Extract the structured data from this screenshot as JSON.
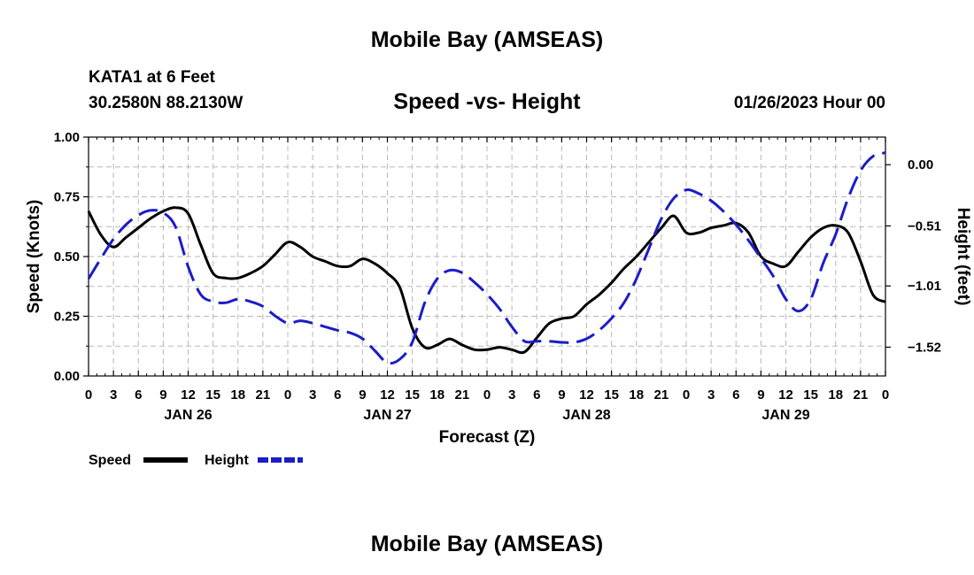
{
  "header": {
    "title": "Mobile Bay (AMSEAS)",
    "station": "KATA1 at 6 Feet",
    "coords": "30.2580N  88.2130W",
    "datetime": "01/26/2023 Hour 00",
    "footer_title": "Mobile Bay (AMSEAS)"
  },
  "chart_data": {
    "type": "line",
    "title": "Speed -vs- Height",
    "xlabel": "Forecast (Z)",
    "ylabel_left": "Speed (Knots)",
    "ylabel_right": "Height (feet)",
    "x_range_hours": [
      0,
      96
    ],
    "y_left_range": [
      0,
      1
    ],
    "y_right_range": [
      -1.76,
      0.23
    ],
    "x_tick_labels": [
      "0",
      "3",
      "6",
      "9",
      "12",
      "15",
      "18",
      "21",
      "0",
      "3",
      "6",
      "9",
      "12",
      "15",
      "18",
      "21",
      "0",
      "3",
      "6",
      "9",
      "12",
      "15",
      "18",
      "21",
      "0",
      "3",
      "6",
      "9",
      "12",
      "15",
      "18",
      "21",
      "0"
    ],
    "day_labels": [
      {
        "hour": 12,
        "label": "JAN 26"
      },
      {
        "hour": 36,
        "label": "JAN 27"
      },
      {
        "hour": 60,
        "label": "JAN 28"
      },
      {
        "hour": 84,
        "label": "JAN 29"
      }
    ],
    "y_left_ticks": [
      {
        "v": 0,
        "label": "0.00"
      },
      {
        "v": 0.25,
        "label": "0.25"
      },
      {
        "v": 0.5,
        "label": "0.50"
      },
      {
        "v": 0.75,
        "label": "0.75"
      },
      {
        "v": 1.0,
        "label": "1.00"
      }
    ],
    "y_right_ticks": [
      {
        "v": 0.0,
        "label": "0.00"
      },
      {
        "v": -0.51,
        "label": "−0.51"
      },
      {
        "v": -1.01,
        "label": "−1.01"
      },
      {
        "v": -1.52,
        "label": "−1.52"
      }
    ],
    "series": [
      {
        "name": "Speed",
        "axis": "left",
        "color": "#000000",
        "style": "solid",
        "points": [
          [
            0,
            0.69
          ],
          [
            1.5,
            0.59
          ],
          [
            3,
            0.54
          ],
          [
            4.5,
            0.58
          ],
          [
            6,
            0.62
          ],
          [
            7.5,
            0.66
          ],
          [
            9,
            0.69
          ],
          [
            10.5,
            0.705
          ],
          [
            12,
            0.68
          ],
          [
            13.5,
            0.55
          ],
          [
            15,
            0.43
          ],
          [
            16.5,
            0.41
          ],
          [
            18,
            0.41
          ],
          [
            19.5,
            0.43
          ],
          [
            21,
            0.46
          ],
          [
            22.5,
            0.51
          ],
          [
            24,
            0.56
          ],
          [
            25.5,
            0.54
          ],
          [
            27,
            0.5
          ],
          [
            28.5,
            0.48
          ],
          [
            30,
            0.46
          ],
          [
            31.5,
            0.46
          ],
          [
            33,
            0.49
          ],
          [
            34.5,
            0.47
          ],
          [
            36,
            0.43
          ],
          [
            37.5,
            0.37
          ],
          [
            39,
            0.2
          ],
          [
            40.5,
            0.12
          ],
          [
            42,
            0.13
          ],
          [
            43.5,
            0.155
          ],
          [
            45,
            0.13
          ],
          [
            46.5,
            0.11
          ],
          [
            48,
            0.11
          ],
          [
            49.5,
            0.12
          ],
          [
            51,
            0.11
          ],
          [
            52.5,
            0.1
          ],
          [
            54,
            0.16
          ],
          [
            55.5,
            0.22
          ],
          [
            57,
            0.24
          ],
          [
            58.5,
            0.25
          ],
          [
            60,
            0.3
          ],
          [
            61.5,
            0.34
          ],
          [
            63,
            0.39
          ],
          [
            64.5,
            0.45
          ],
          [
            66,
            0.5
          ],
          [
            67.5,
            0.56
          ],
          [
            69,
            0.62
          ],
          [
            70.5,
            0.67
          ],
          [
            72,
            0.6
          ],
          [
            73.5,
            0.6
          ],
          [
            75,
            0.62
          ],
          [
            76.5,
            0.63
          ],
          [
            78,
            0.64
          ],
          [
            79.5,
            0.6
          ],
          [
            81,
            0.5
          ],
          [
            82.5,
            0.47
          ],
          [
            84,
            0.46
          ],
          [
            85.5,
            0.52
          ],
          [
            87,
            0.58
          ],
          [
            88.5,
            0.62
          ],
          [
            90,
            0.63
          ],
          [
            91.5,
            0.6
          ],
          [
            93,
            0.48
          ],
          [
            94.5,
            0.34
          ],
          [
            96,
            0.31
          ]
        ]
      },
      {
        "name": "Height",
        "axis": "right",
        "color": "#1c1cc8",
        "style": "dashed",
        "points": [
          [
            0,
            -0.95
          ],
          [
            1.5,
            -0.78
          ],
          [
            3,
            -0.62
          ],
          [
            4.5,
            -0.5
          ],
          [
            6,
            -0.42
          ],
          [
            7.5,
            -0.38
          ],
          [
            9,
            -0.4
          ],
          [
            10.5,
            -0.52
          ],
          [
            12,
            -0.85
          ],
          [
            13.5,
            -1.08
          ],
          [
            15,
            -1.14
          ],
          [
            16.5,
            -1.15
          ],
          [
            18,
            -1.12
          ],
          [
            19.5,
            -1.14
          ],
          [
            21,
            -1.18
          ],
          [
            22.5,
            -1.26
          ],
          [
            24,
            -1.32
          ],
          [
            25.5,
            -1.3
          ],
          [
            27,
            -1.32
          ],
          [
            28.5,
            -1.35
          ],
          [
            30,
            -1.38
          ],
          [
            31.5,
            -1.4
          ],
          [
            33,
            -1.45
          ],
          [
            34.5,
            -1.55
          ],
          [
            36,
            -1.65
          ],
          [
            37.5,
            -1.62
          ],
          [
            39,
            -1.48
          ],
          [
            40.5,
            -1.15
          ],
          [
            42,
            -0.95
          ],
          [
            43.5,
            -0.88
          ],
          [
            45,
            -0.9
          ],
          [
            46.5,
            -0.98
          ],
          [
            48,
            -1.08
          ],
          [
            49.5,
            -1.2
          ],
          [
            51,
            -1.35
          ],
          [
            52.5,
            -1.47
          ],
          [
            54,
            -1.47
          ],
          [
            55.5,
            -1.47
          ],
          [
            57,
            -1.48
          ],
          [
            58.5,
            -1.48
          ],
          [
            60,
            -1.45
          ],
          [
            61.5,
            -1.38
          ],
          [
            63,
            -1.28
          ],
          [
            64.5,
            -1.15
          ],
          [
            66,
            -0.95
          ],
          [
            67.5,
            -0.7
          ],
          [
            69,
            -0.45
          ],
          [
            70.5,
            -0.28
          ],
          [
            72,
            -0.21
          ],
          [
            73.5,
            -0.24
          ],
          [
            75,
            -0.3
          ],
          [
            76.5,
            -0.39
          ],
          [
            78,
            -0.5
          ],
          [
            79.5,
            -0.63
          ],
          [
            81,
            -0.78
          ],
          [
            82.5,
            -0.93
          ],
          [
            84,
            -1.12
          ],
          [
            85.5,
            -1.22
          ],
          [
            87,
            -1.12
          ],
          [
            88.5,
            -0.82
          ],
          [
            90,
            -0.58
          ],
          [
            91.5,
            -0.28
          ],
          [
            93,
            -0.05
          ],
          [
            94.5,
            0.07
          ],
          [
            96,
            0.1
          ]
        ]
      }
    ],
    "legend": [
      {
        "label": "Speed",
        "color": "#000000",
        "style": "solid"
      },
      {
        "label": "Height",
        "color": "#1c1cc8",
        "style": "dashed"
      }
    ],
    "legend_position": "bottom-left",
    "grid": true
  }
}
